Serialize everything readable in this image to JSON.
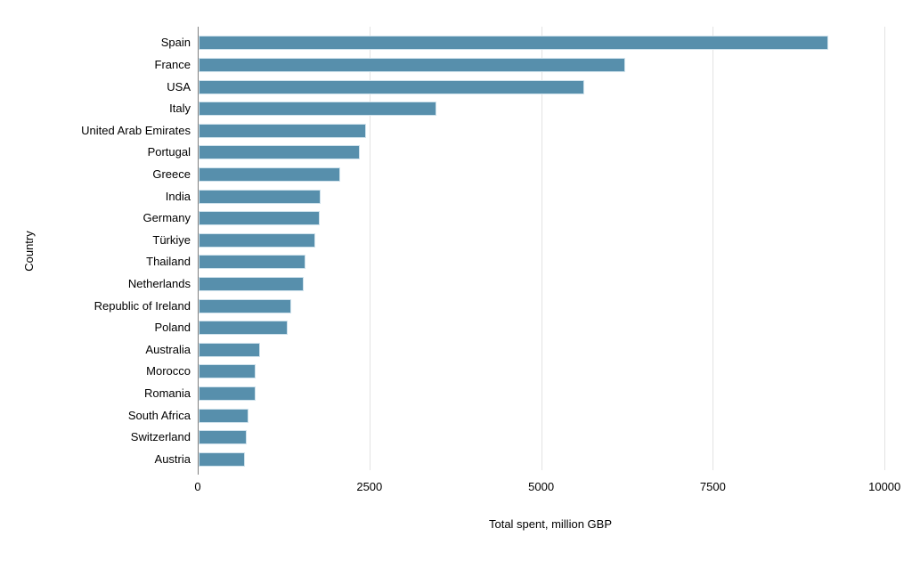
{
  "chart_data": {
    "type": "bar",
    "orientation": "horizontal",
    "title": "",
    "xlabel": "Total spent, million GBP",
    "ylabel": "Country",
    "categories": [
      "Spain",
      "France",
      "USA",
      "Italy",
      "United Arab Emirates",
      "Portugal",
      "Greece",
      "India",
      "Germany",
      "Türkiye",
      "Thailand",
      "Netherlands",
      "Republic of Ireland",
      "Poland",
      "Australia",
      "Morocco",
      "Romania",
      "South Africa",
      "Switzerland",
      "Austria"
    ],
    "values": [
      9170,
      6210,
      5610,
      3460,
      2440,
      2350,
      2060,
      1780,
      1760,
      1700,
      1550,
      1530,
      1350,
      1290,
      900,
      830,
      825,
      725,
      705,
      670
    ],
    "xticks": [
      0,
      2500,
      5000,
      7500,
      10000
    ],
    "xlim": [
      0,
      10270
    ],
    "grid": "vertical-gridlines-on",
    "legend": "none",
    "bar_color": "#578fac",
    "bar_border_color": "#cfe2ec",
    "gridline_color": "#e2e2e2",
    "axis_line_color": "#7f7f7f",
    "text_color": "#000000",
    "background_color": "#ffffff"
  }
}
